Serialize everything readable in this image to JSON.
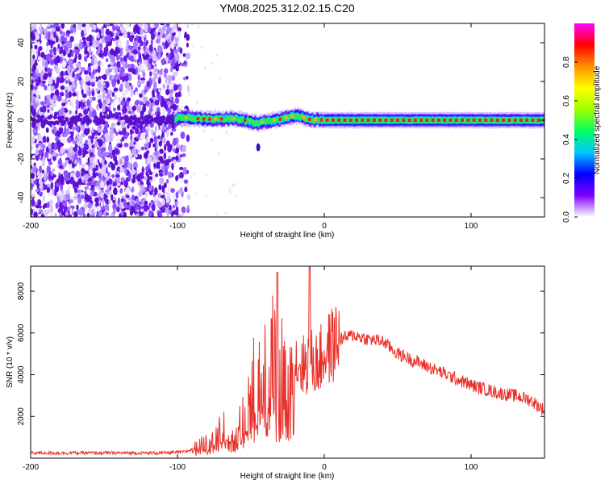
{
  "figure_title": "YM08.2025.312.02.15.C20",
  "colors": {
    "snr_line": "#e8302a",
    "noise_purple": "#6a18e6",
    "band_core": "#e0202a",
    "axis": "#000000"
  },
  "colorbar": {
    "label": "Normalized spectral amplitude",
    "range": [
      0.0,
      1.0
    ],
    "ticks": [
      "0.0",
      "0.2",
      "0.4",
      "0.6",
      "0.8"
    ],
    "tick_values": [
      0.0,
      0.2,
      0.4,
      0.6,
      0.8
    ],
    "stops": [
      "#ffffff",
      "#7d00ff",
      "#0000ff",
      "#00c8ff",
      "#00ff60",
      "#a0ff00",
      "#ffff00",
      "#ff9000",
      "#ff0000",
      "#ff00ff"
    ]
  },
  "chart_data": [
    {
      "type": "heatmap",
      "title": "YM08.2025.312.02.15.C20",
      "xlabel": "Height of straight line (km)",
      "ylabel": "Frequency (Hz)",
      "xlim": [
        -200,
        150
      ],
      "ylim": [
        -50,
        50
      ],
      "xticks": [
        -200,
        -100,
        0,
        100
      ],
      "xtick_labels": [
        "-200",
        "-100",
        "0",
        "100"
      ],
      "yticks": [
        -40,
        -20,
        0,
        20,
        40
      ],
      "ytick_labels": [
        "-40",
        "-20",
        "0",
        "20",
        "40"
      ],
      "description_regions": [
        {
          "x_range": [
            -200,
            -100
          ],
          "content": "broadband purple noise at all frequencies"
        },
        {
          "x_range": [
            -100,
            150
          ],
          "content": "narrow high-amplitude band centred near 0 Hz"
        }
      ],
      "band_center_hz": {
        "x": [
          -100,
          -80,
          -60,
          -45,
          -30,
          -20,
          -10,
          0,
          50,
          100,
          150
        ],
        "y": [
          1.5,
          0.5,
          0.8,
          -1.5,
          0.5,
          2.5,
          0.5,
          0,
          0,
          0,
          0
        ]
      }
    },
    {
      "type": "line",
      "xlabel": "Height of straight line (km)",
      "ylabel": "SNR (10 * v/v)",
      "xlim": [
        -200,
        150
      ],
      "ylim": [
        0,
        9200
      ],
      "xticks": [
        -200,
        -100,
        0,
        100
      ],
      "xtick_labels": [
        "-200",
        "-100",
        "0",
        "100"
      ],
      "yticks": [
        2000,
        4000,
        6000,
        8000
      ],
      "ytick_labels": [
        "2000",
        "4000",
        "6000",
        "8000"
      ],
      "series": [
        {
          "name": "SNR",
          "x": [
            -200,
            -150,
            -110,
            -95,
            -85,
            -75,
            -68,
            -62,
            -55,
            -50,
            -45,
            -40,
            -35,
            -32,
            -28,
            -25,
            -20,
            -15,
            -10,
            -5,
            0,
            5,
            10,
            20,
            30,
            40,
            50,
            60,
            70,
            80,
            90,
            100,
            110,
            120,
            130,
            140,
            150
          ],
          "y": [
            250,
            250,
            250,
            300,
            550,
            900,
            1600,
            900,
            1800,
            3200,
            3500,
            3800,
            5500,
            2200,
            4500,
            2500,
            4700,
            4400,
            4700,
            4500,
            5000,
            5400,
            5700,
            5900,
            5700,
            5600,
            5000,
            4700,
            4400,
            4100,
            3800,
            3500,
            3300,
            3100,
            3000,
            2800,
            2300
          ]
        }
      ],
      "spikes": [
        {
          "x": -32,
          "y": 8900
        },
        {
          "x": -10,
          "y": 9200
        }
      ]
    }
  ]
}
